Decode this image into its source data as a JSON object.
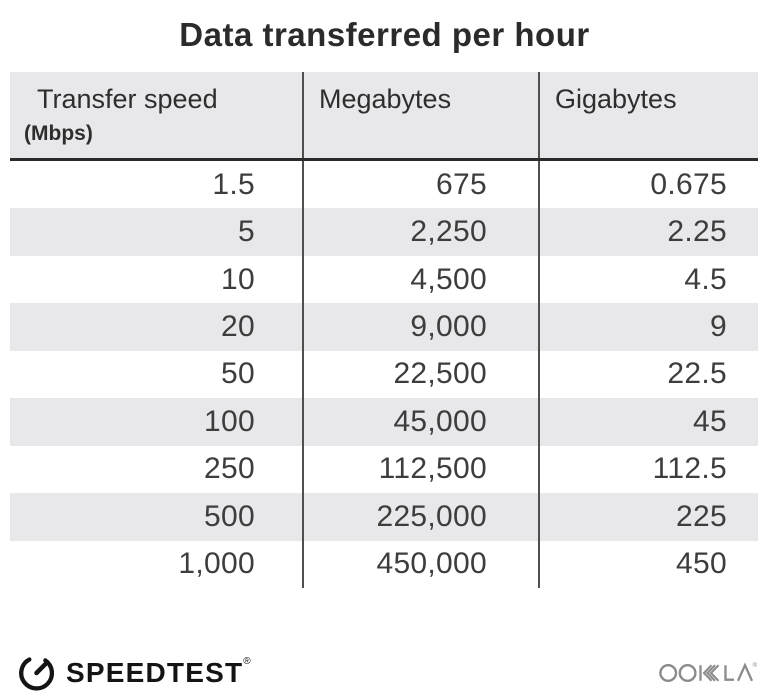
{
  "title": "Data transferred per hour",
  "table": {
    "columns": [
      {
        "label": "Transfer speed",
        "sublabel": "(Mbps)"
      },
      {
        "label": "Megabytes"
      },
      {
        "label": "Gigabytes"
      }
    ],
    "rows": [
      [
        "1.5",
        "675",
        "0.675"
      ],
      [
        "5",
        "2,250",
        "2.25"
      ],
      [
        "10",
        "4,500",
        "4.5"
      ],
      [
        "20",
        "9,000",
        "9"
      ],
      [
        "50",
        "22,500",
        "22.5"
      ],
      [
        "100",
        "45,000",
        "45"
      ],
      [
        "250",
        "112,500",
        "112.5"
      ],
      [
        "500",
        "225,000",
        "225"
      ],
      [
        "1,000",
        "450,000",
        "450"
      ]
    ]
  },
  "footer": {
    "speedtest_label": "SPEEDTEST",
    "speedtest_trademark": "®",
    "ookla_label": "OOKLA",
    "ookla_trademark": "®"
  },
  "colors": {
    "stripe": "#e8e8eb",
    "divider": "#4f4f4f",
    "header_border": "#2b2b2b",
    "body_text": "#3d3d3d",
    "title_text": "#2b2b2b",
    "speedtest_black": "#141414",
    "ookla_gray": "#8b8b8d"
  },
  "chart_data": {
    "type": "table",
    "title": "Data transferred per hour",
    "columns": [
      "Transfer speed (Mbps)",
      "Megabytes",
      "Gigabytes"
    ],
    "rows": [
      [
        1.5,
        675,
        0.675
      ],
      [
        5,
        2250,
        2.25
      ],
      [
        10,
        4500,
        4.5
      ],
      [
        20,
        9000,
        9
      ],
      [
        50,
        22500,
        22.5
      ],
      [
        100,
        45000,
        45
      ],
      [
        250,
        112500,
        112.5
      ],
      [
        500,
        225000,
        225
      ],
      [
        1000,
        450000,
        450
      ]
    ],
    "layout_hints": {
      "striped_rows": true,
      "stripe_pattern": "even data rows white, alternate rows light gray",
      "column_alignment": [
        "right",
        "right",
        "right"
      ],
      "header_background": "#e8e8eb"
    }
  }
}
